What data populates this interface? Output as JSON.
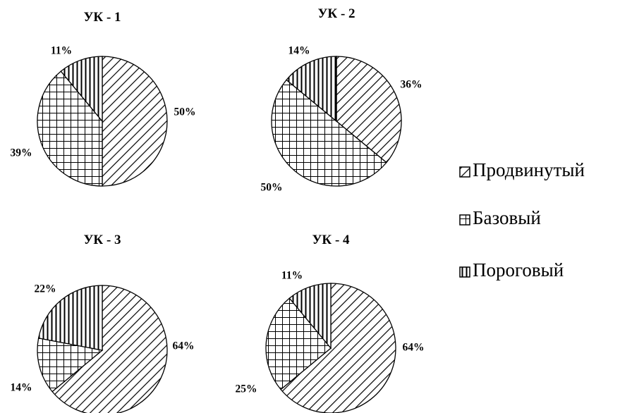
{
  "chart_data": [
    {
      "type": "pie",
      "title": "УК - 1",
      "categories": [
        "Продвинутый",
        "Базовый",
        "Пороговый"
      ],
      "values": [
        50,
        39,
        11
      ],
      "labels": [
        "50%",
        "39%",
        "11%"
      ]
    },
    {
      "type": "pie",
      "title": "УК - 2",
      "categories": [
        "Продвинутый",
        "Базовый",
        "Пороговый"
      ],
      "values": [
        36,
        50,
        14
      ],
      "labels": [
        "36%",
        "50%",
        "14%"
      ]
    },
    {
      "type": "pie",
      "title": "УК - 3",
      "categories": [
        "Продвинутый",
        "Базовый",
        "Пороговый"
      ],
      "values": [
        64,
        14,
        22
      ],
      "labels": [
        "64%",
        "14%",
        "22%"
      ]
    },
    {
      "type": "pie",
      "title": "УК - 4",
      "categories": [
        "Продвинутый",
        "Базовый",
        "Пороговый"
      ],
      "values": [
        64,
        25,
        11
      ],
      "labels": [
        "64%",
        "25%",
        "11%"
      ]
    }
  ],
  "legend": {
    "placement": "right",
    "items": [
      {
        "label": "Продвинутый",
        "pattern": "diagonal-hatch"
      },
      {
        "label": "Базовый",
        "pattern": "cross-grid"
      },
      {
        "label": "Пороговый",
        "pattern": "vertical-lines"
      }
    ]
  }
}
